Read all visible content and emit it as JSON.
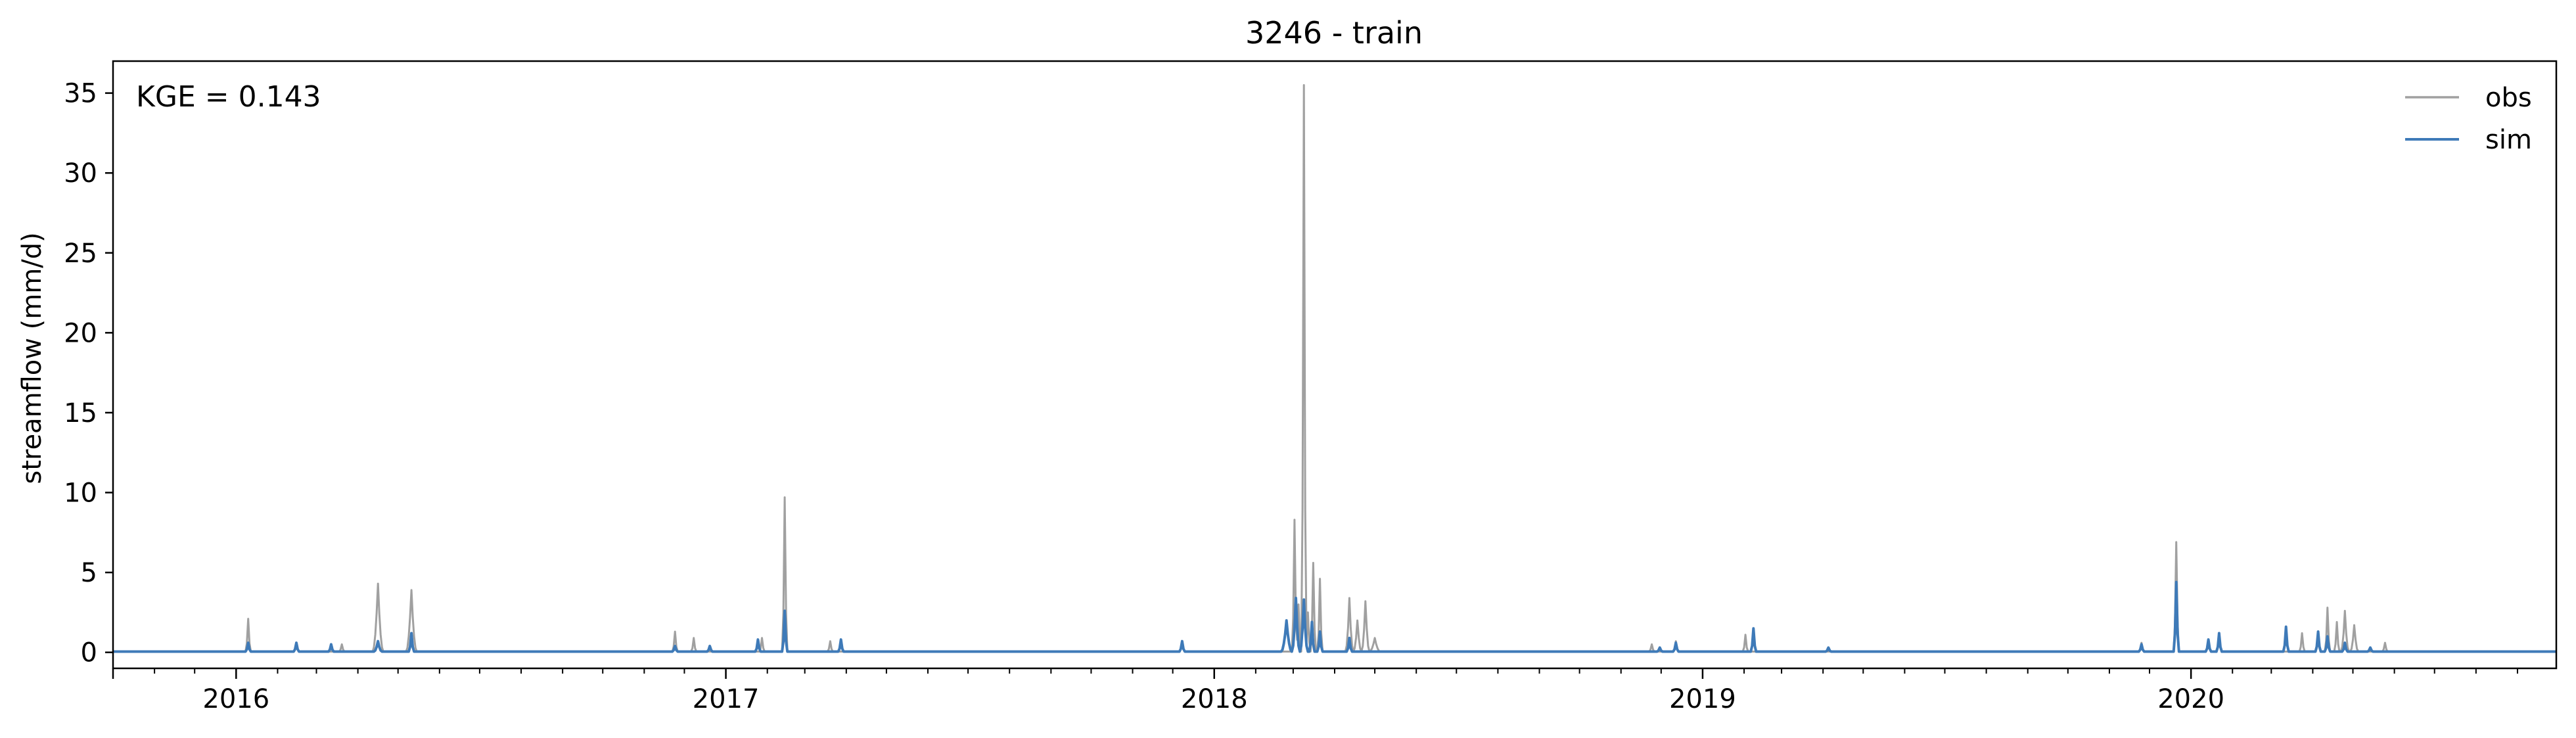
{
  "chart_data": {
    "type": "line",
    "title": "3246 - train",
    "xlabel": "",
    "ylabel": "streamflow (mm/d)",
    "annotation": "KGE = 0.143",
    "xlim": [
      "2015-10-01",
      "2020-09-30"
    ],
    "ylim": [
      -1,
      37
    ],
    "yticks": [
      0,
      5,
      10,
      15,
      20,
      25,
      30,
      35
    ],
    "ytick_labels": [
      "0",
      "5",
      "10",
      "15",
      "20",
      "25",
      "30",
      "35"
    ],
    "xticks": [
      "2016-01-01",
      "2017-01-01",
      "2018-01-01",
      "2019-01-01",
      "2020-01-01"
    ],
    "xtick_labels": [
      "2016",
      "2017",
      "2018",
      "2019",
      "2020"
    ],
    "grid": false,
    "legend_position": "top-right",
    "baseline": 0.05,
    "series": [
      {
        "name": "obs",
        "color": "#a0a0a0",
        "peaks": [
          [
            "2016-01-10",
            2.1,
            2
          ],
          [
            "2016-02-15",
            0.6,
            2
          ],
          [
            "2016-03-20",
            0.5,
            2
          ],
          [
            "2016-04-16",
            4.3,
            4
          ],
          [
            "2016-05-11",
            3.9,
            4
          ],
          [
            "2016-11-24",
            1.3,
            2
          ],
          [
            "2016-12-08",
            0.9,
            2
          ],
          [
            "2017-01-28",
            0.9,
            2
          ],
          [
            "2017-02-14",
            9.7,
            2
          ],
          [
            "2017-03-20",
            0.7,
            2
          ],
          [
            "2017-12-08",
            0.7,
            2
          ],
          [
            "2018-03-02",
            8.3,
            2
          ],
          [
            "2018-03-05",
            3.0,
            2
          ],
          [
            "2018-03-09",
            35.5,
            2
          ],
          [
            "2018-03-12",
            2.5,
            2
          ],
          [
            "2018-03-16",
            5.6,
            2
          ],
          [
            "2018-03-21",
            4.6,
            2
          ],
          [
            "2018-04-12",
            3.4,
            3
          ],
          [
            "2018-04-18",
            2.0,
            3
          ],
          [
            "2018-04-24",
            3.2,
            3
          ],
          [
            "2018-05-01",
            0.9,
            4
          ],
          [
            "2018-11-24",
            0.5,
            2
          ],
          [
            "2018-12-12",
            0.7,
            2
          ],
          [
            "2019-02-02",
            1.1,
            2
          ],
          [
            "2019-11-25",
            0.6,
            2
          ],
          [
            "2019-12-21",
            6.9,
            2
          ],
          [
            "2020-01-14",
            0.8,
            2
          ],
          [
            "2020-01-22",
            1.0,
            2
          ],
          [
            "2020-03-24",
            1.2,
            2
          ],
          [
            "2020-04-05",
            0.9,
            2
          ],
          [
            "2020-04-12",
            2.8,
            2
          ],
          [
            "2020-04-19",
            1.9,
            2
          ],
          [
            "2020-04-25",
            2.6,
            3
          ],
          [
            "2020-05-02",
            1.7,
            3
          ],
          [
            "2020-05-25",
            0.6,
            2
          ]
        ]
      },
      {
        "name": "sim",
        "color": "#3e7ab8",
        "peaks": [
          [
            "2016-01-10",
            0.6,
            2
          ],
          [
            "2016-02-15",
            0.6,
            2
          ],
          [
            "2016-03-12",
            0.5,
            2
          ],
          [
            "2016-04-16",
            0.7,
            3
          ],
          [
            "2016-05-11",
            1.2,
            2
          ],
          [
            "2016-11-24",
            0.4,
            2
          ],
          [
            "2016-12-20",
            0.4,
            2
          ],
          [
            "2017-01-25",
            0.8,
            2
          ],
          [
            "2017-02-14",
            2.6,
            2
          ],
          [
            "2017-03-28",
            0.8,
            2
          ],
          [
            "2017-12-08",
            0.7,
            2
          ],
          [
            "2018-02-24",
            2.0,
            4
          ],
          [
            "2018-03-03",
            3.4,
            3
          ],
          [
            "2018-03-09",
            3.3,
            3
          ],
          [
            "2018-03-15",
            1.9,
            2
          ],
          [
            "2018-03-21",
            1.3,
            2
          ],
          [
            "2018-04-12",
            0.9,
            2
          ],
          [
            "2018-11-30",
            0.3,
            2
          ],
          [
            "2018-12-12",
            0.6,
            2
          ],
          [
            "2019-02-08",
            1.5,
            2
          ],
          [
            "2019-04-05",
            0.3,
            2
          ],
          [
            "2019-11-25",
            0.5,
            2
          ],
          [
            "2019-12-21",
            4.4,
            2
          ],
          [
            "2020-01-14",
            0.8,
            2
          ],
          [
            "2020-01-22",
            1.2,
            2
          ],
          [
            "2020-03-12",
            1.6,
            2
          ],
          [
            "2020-04-05",
            1.3,
            2
          ],
          [
            "2020-04-12",
            1.0,
            2
          ],
          [
            "2020-04-25",
            0.6,
            2
          ],
          [
            "2020-05-14",
            0.3,
            2
          ]
        ]
      }
    ]
  }
}
